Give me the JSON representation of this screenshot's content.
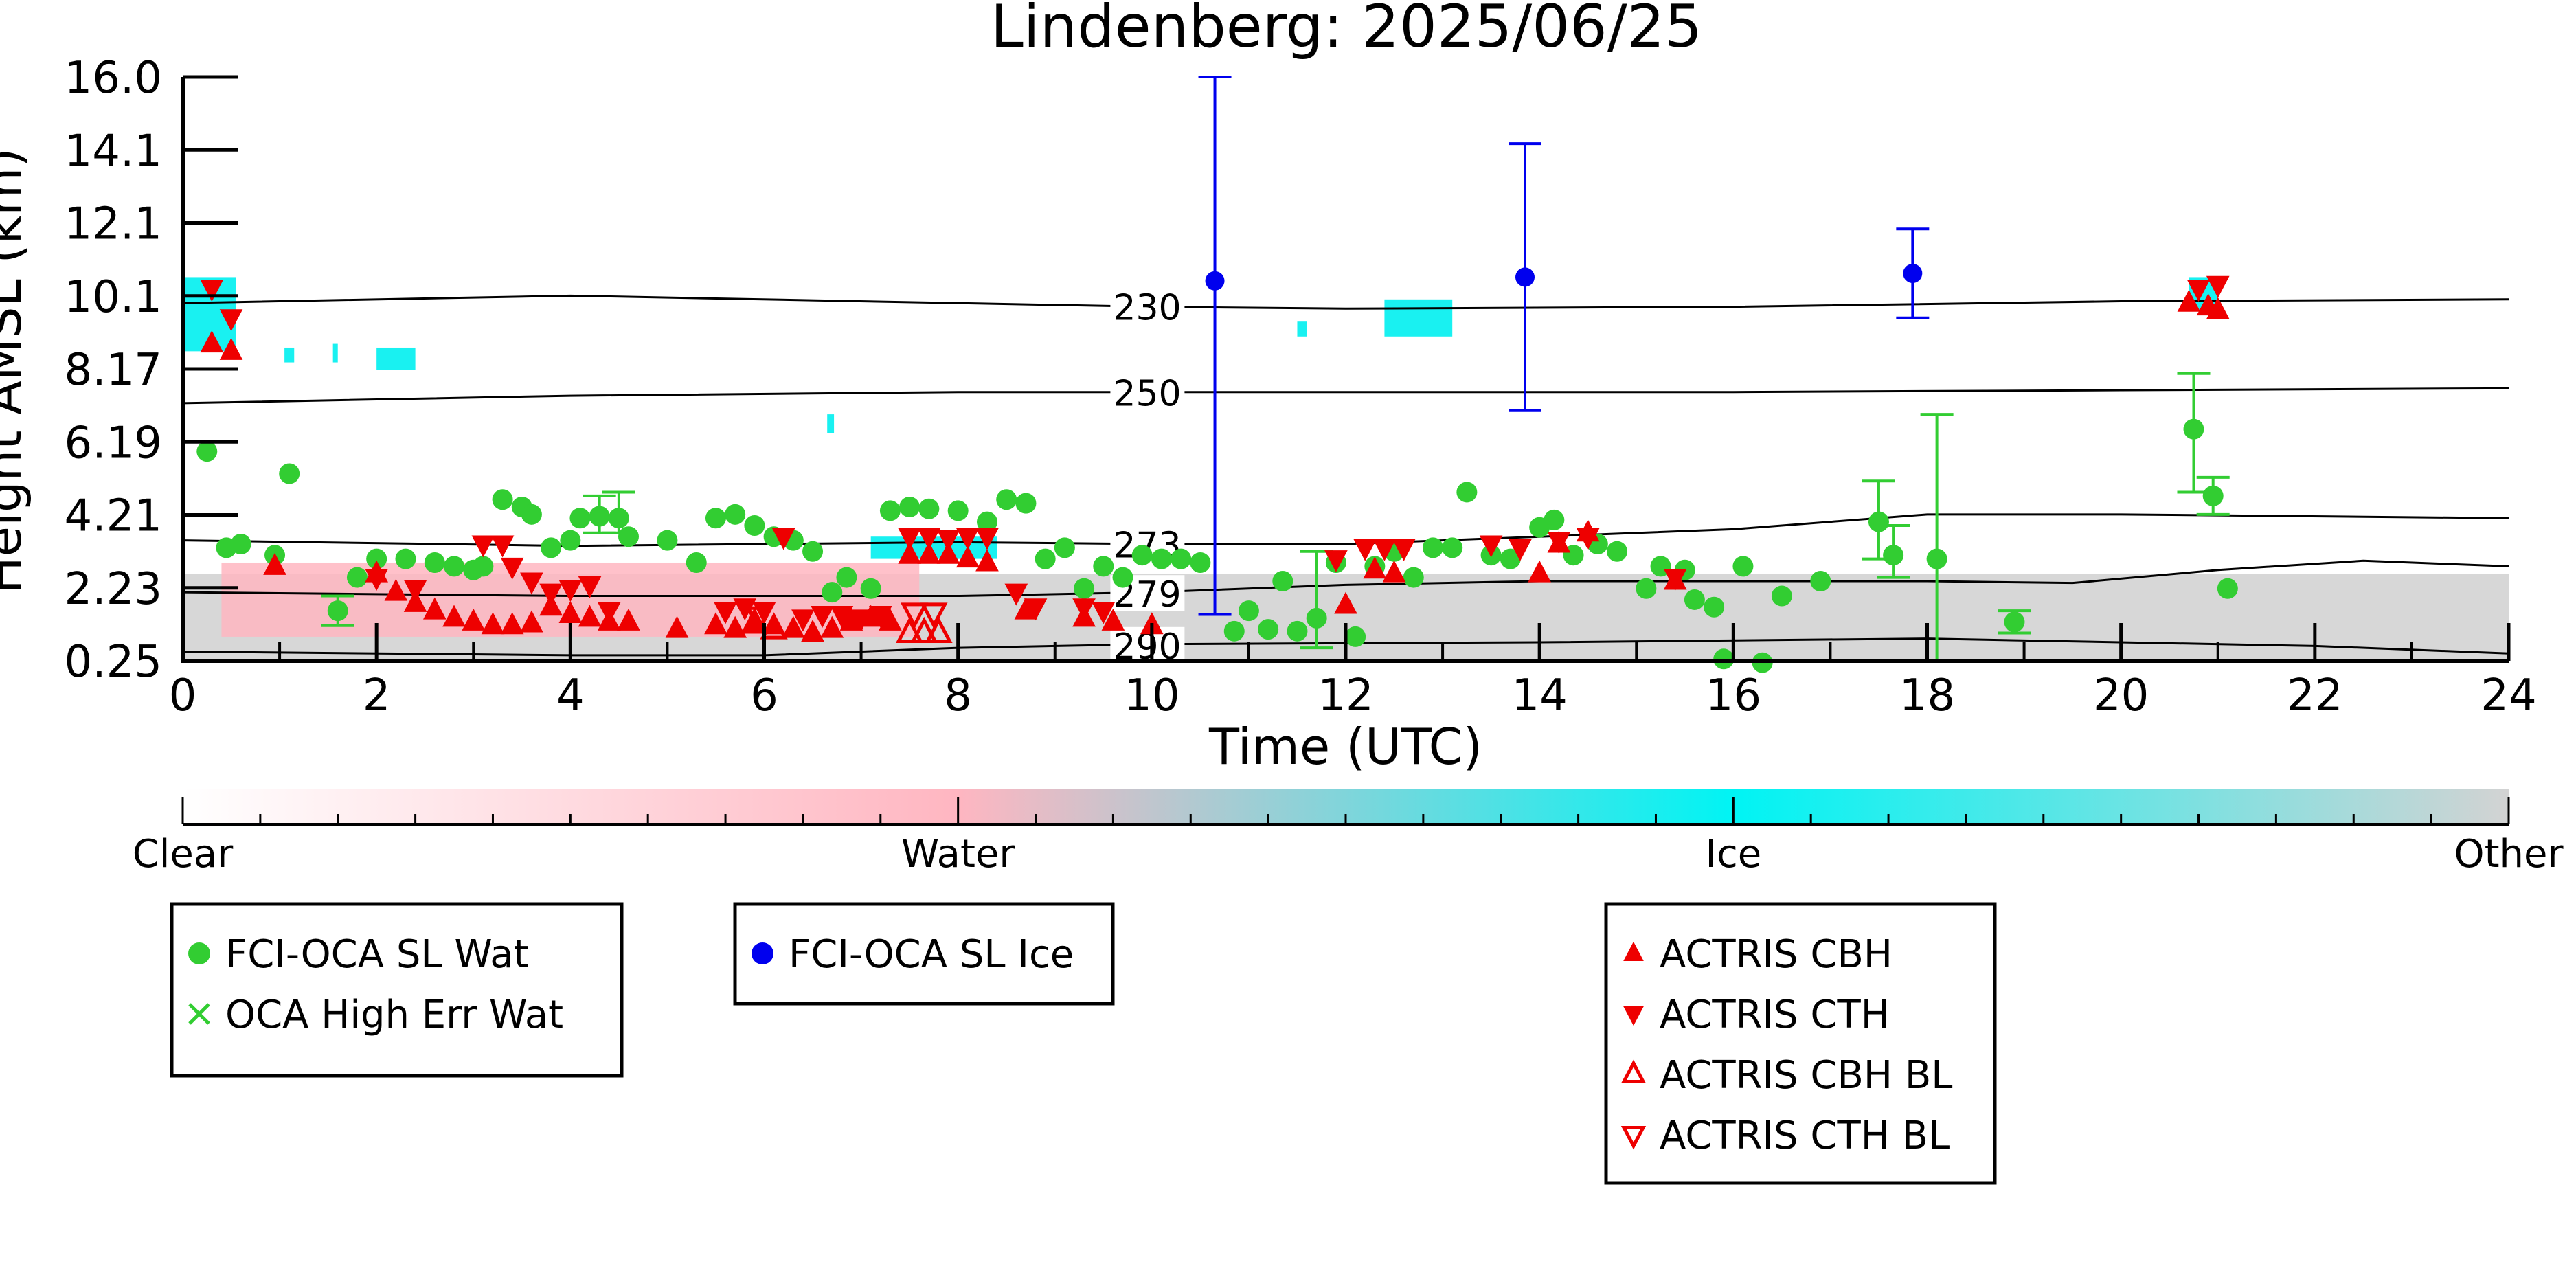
{
  "chart_data": {
    "type": "scatter",
    "title": "Lindenberg: 2025/06/25",
    "xlabel": "Time (UTC)",
    "ylabel": "Height AMSL (km)",
    "xlim": [
      0,
      24
    ],
    "x_ticks": [
      "0",
      "2",
      "4",
      "6",
      "8",
      "10",
      "12",
      "14",
      "16",
      "18",
      "20",
      "22",
      "24"
    ],
    "y_ticks": [
      "0.25",
      "2.23",
      "4.21",
      "6.19",
      "8.17",
      "10.1",
      "12.1",
      "14.1",
      "16.0"
    ],
    "ylim": [
      0.25,
      16.0
    ],
    "grid": false,
    "colors": {
      "water_pts": "#32cd32",
      "ice_pts": "#0000ee",
      "actris": "#ee0000",
      "ice_mask": "#00f0f0",
      "water_mask": "#ffb6c1",
      "other_mask": "#d3d3d3"
    },
    "isotherms": [
      {
        "label": "230",
        "x": [
          0,
          4,
          8,
          10,
          12,
          16,
          20,
          24
        ],
        "y": [
          9.9,
          10.1,
          9.9,
          9.8,
          9.75,
          9.8,
          9.95,
          10.0
        ]
      },
      {
        "label": "250",
        "x": [
          0,
          4,
          8,
          10,
          12,
          16,
          20,
          24
        ],
        "y": [
          7.2,
          7.4,
          7.5,
          7.5,
          7.5,
          7.5,
          7.55,
          7.6
        ]
      },
      {
        "label": "273",
        "x": [
          0,
          4,
          8,
          10,
          12,
          14,
          16,
          18,
          20,
          24
        ],
        "y": [
          3.5,
          3.35,
          3.45,
          3.4,
          3.4,
          3.6,
          3.8,
          4.2,
          4.2,
          4.1
        ]
      },
      {
        "label": "279",
        "x": [
          0,
          4,
          8,
          10,
          12,
          14,
          16,
          18,
          19.5,
          21,
          22.5,
          24
        ],
        "y": [
          2.1,
          2.0,
          2.0,
          2.1,
          2.3,
          2.4,
          2.4,
          2.4,
          2.35,
          2.7,
          2.95,
          2.8
        ]
      },
      {
        "label": "290",
        "x": [
          0,
          4,
          6,
          8,
          10,
          14,
          18,
          22,
          24
        ],
        "y": [
          0.5,
          0.4,
          0.4,
          0.6,
          0.7,
          0.75,
          0.85,
          0.65,
          0.45
        ]
      }
    ],
    "isotherm_label_x": 9.6,
    "masks": [
      {
        "x0": 0,
        "x1": 24,
        "y0": 0.25,
        "y1": 2.6,
        "cls": "other"
      },
      {
        "x0": 0.4,
        "x1": 7.6,
        "y0": 0.9,
        "y1": 2.9,
        "cls": "water"
      },
      {
        "x0": 0,
        "x1": 0.55,
        "y0": 8.6,
        "y1": 10.6,
        "cls": "ice"
      },
      {
        "x0": 7.1,
        "x1": 8.4,
        "y0": 3.0,
        "y1": 3.6,
        "cls": "ice"
      },
      {
        "x0": 20.7,
        "x1": 21.0,
        "y0": 9.7,
        "y1": 10.6,
        "cls": "ice"
      },
      {
        "x0": 1.05,
        "x1": 1.15,
        "y0": 8.3,
        "y1": 8.7,
        "cls": "ice"
      },
      {
        "x0": 1.55,
        "x1": 1.6,
        "y0": 8.3,
        "y1": 8.8,
        "cls": "ice"
      },
      {
        "x0": 2.0,
        "x1": 2.4,
        "y0": 8.1,
        "y1": 8.7,
        "cls": "ice"
      },
      {
        "x0": 6.65,
        "x1": 6.72,
        "y0": 6.4,
        "y1": 6.9,
        "cls": "ice"
      },
      {
        "x0": 11.5,
        "x1": 11.6,
        "y0": 9.0,
        "y1": 9.4,
        "cls": "ice"
      },
      {
        "x0": 12.4,
        "x1": 13.1,
        "y0": 9.0,
        "y1": 10.0,
        "cls": "ice"
      }
    ],
    "legend_colorbar": {
      "labels": [
        "Clear",
        "Water",
        "Ice",
        "Other"
      ]
    },
    "series": [
      {
        "name": "FCI-OCA SL Wat",
        "marker": "circle",
        "color": "#32cd32",
        "points": [
          {
            "x": 0.25,
            "y": 5.9
          },
          {
            "x": 0.45,
            "y": 3.3
          },
          {
            "x": 0.6,
            "y": 3.4
          },
          {
            "x": 0.95,
            "y": 3.1
          },
          {
            "x": 1.1,
            "y": 5.3
          },
          {
            "x": 1.6,
            "y": 1.6
          },
          {
            "x": 1.8,
            "y": 2.5
          },
          {
            "x": 2.0,
            "y": 3.0
          },
          {
            "x": 2.3,
            "y": 3.0
          },
          {
            "x": 2.6,
            "y": 2.9
          },
          {
            "x": 2.8,
            "y": 2.8
          },
          {
            "x": 3.0,
            "y": 2.7
          },
          {
            "x": 3.1,
            "y": 2.8
          },
          {
            "x": 3.3,
            "y": 4.6
          },
          {
            "x": 3.5,
            "y": 4.4
          },
          {
            "x": 3.6,
            "y": 4.2
          },
          {
            "x": 3.8,
            "y": 3.3
          },
          {
            "x": 4.0,
            "y": 3.5
          },
          {
            "x": 4.1,
            "y": 4.1
          },
          {
            "x": 4.3,
            "y": 4.15
          },
          {
            "x": 4.5,
            "y": 4.1
          },
          {
            "x": 4.6,
            "y": 3.6
          },
          {
            "x": 5.0,
            "y": 3.5
          },
          {
            "x": 5.3,
            "y": 2.9
          },
          {
            "x": 5.5,
            "y": 4.1
          },
          {
            "x": 5.7,
            "y": 4.2
          },
          {
            "x": 5.9,
            "y": 3.9
          },
          {
            "x": 6.1,
            "y": 3.6
          },
          {
            "x": 6.3,
            "y": 3.5
          },
          {
            "x": 6.5,
            "y": 3.2
          },
          {
            "x": 6.7,
            "y": 2.1
          },
          {
            "x": 6.85,
            "y": 2.5
          },
          {
            "x": 7.1,
            "y": 2.2
          },
          {
            "x": 7.3,
            "y": 4.3
          },
          {
            "x": 7.5,
            "y": 4.4
          },
          {
            "x": 7.7,
            "y": 4.35
          },
          {
            "x": 8.0,
            "y": 4.3
          },
          {
            "x": 8.3,
            "y": 4.0
          },
          {
            "x": 8.5,
            "y": 4.6
          },
          {
            "x": 8.7,
            "y": 4.5
          },
          {
            "x": 8.9,
            "y": 3.0
          },
          {
            "x": 9.1,
            "y": 3.3
          },
          {
            "x": 9.3,
            "y": 2.2
          },
          {
            "x": 9.5,
            "y": 2.8
          },
          {
            "x": 9.7,
            "y": 2.5
          },
          {
            "x": 9.9,
            "y": 3.1
          },
          {
            "x": 10.1,
            "y": 3.0
          },
          {
            "x": 10.3,
            "y": 3.0
          },
          {
            "x": 10.5,
            "y": 2.9
          },
          {
            "x": 10.85,
            "y": 1.05
          },
          {
            "x": 11.0,
            "y": 1.6
          },
          {
            "x": 11.2,
            "y": 1.1
          },
          {
            "x": 11.35,
            "y": 2.4
          },
          {
            "x": 11.5,
            "y": 1.05
          },
          {
            "x": 11.7,
            "y": 1.4
          },
          {
            "x": 11.9,
            "y": 2.9
          },
          {
            "x": 12.1,
            "y": 0.9
          },
          {
            "x": 12.3,
            "y": 2.8
          },
          {
            "x": 12.5,
            "y": 3.2
          },
          {
            "x": 12.7,
            "y": 2.5
          },
          {
            "x": 12.9,
            "y": 3.3
          },
          {
            "x": 13.1,
            "y": 3.3
          },
          {
            "x": 13.25,
            "y": 4.8
          },
          {
            "x": 13.5,
            "y": 3.1
          },
          {
            "x": 13.7,
            "y": 3.0
          },
          {
            "x": 14.0,
            "y": 3.85
          },
          {
            "x": 14.15,
            "y": 4.05
          },
          {
            "x": 14.35,
            "y": 3.1
          },
          {
            "x": 14.6,
            "y": 3.4
          },
          {
            "x": 14.8,
            "y": 3.2
          },
          {
            "x": 15.1,
            "y": 2.2
          },
          {
            "x": 15.25,
            "y": 2.8
          },
          {
            "x": 15.5,
            "y": 2.7
          },
          {
            "x": 15.6,
            "y": 1.9
          },
          {
            "x": 15.8,
            "y": 1.7
          },
          {
            "x": 15.9,
            "y": 0.3
          },
          {
            "x": 16.1,
            "y": 2.8
          },
          {
            "x": 16.3,
            "y": 0.2
          },
          {
            "x": 16.5,
            "y": 2.0
          },
          {
            "x": 16.9,
            "y": 2.4
          },
          {
            "x": 17.5,
            "y": 4.0
          },
          {
            "x": 17.65,
            "y": 3.1
          },
          {
            "x": 18.1,
            "y": 3.0
          },
          {
            "x": 18.9,
            "y": 1.3
          },
          {
            "x": 20.75,
            "y": 6.5
          },
          {
            "x": 20.95,
            "y": 4.7
          },
          {
            "x": 21.1,
            "y": 2.2
          }
        ]
      },
      {
        "name": "OCA High Err Wat",
        "marker": "x",
        "color": "#32cd32",
        "points": []
      },
      {
        "name": "FCI-OCA SL Ice",
        "marker": "circle",
        "color": "#0000ee",
        "points": [
          {
            "x": 10.65,
            "y": 10.5
          },
          {
            "x": 13.85,
            "y": 10.6
          },
          {
            "x": 17.85,
            "y": 10.7
          }
        ]
      },
      {
        "name": "ACTRIS CBH",
        "marker": "triangle-up",
        "color": "#ee0000",
        "filled": true,
        "points": [
          {
            "x": 0.3,
            "y": 8.8
          },
          {
            "x": 0.5,
            "y": 8.6
          },
          {
            "x": 0.95,
            "y": 2.8
          },
          {
            "x": 2.0,
            "y": 2.6
          },
          {
            "x": 2.2,
            "y": 2.1
          },
          {
            "x": 2.4,
            "y": 1.8
          },
          {
            "x": 2.6,
            "y": 1.6
          },
          {
            "x": 2.8,
            "y": 1.4
          },
          {
            "x": 3.0,
            "y": 1.3
          },
          {
            "x": 3.2,
            "y": 1.2
          },
          {
            "x": 3.4,
            "y": 1.2
          },
          {
            "x": 3.6,
            "y": 1.25
          },
          {
            "x": 3.8,
            "y": 1.7
          },
          {
            "x": 4.0,
            "y": 1.5
          },
          {
            "x": 4.2,
            "y": 1.4
          },
          {
            "x": 4.4,
            "y": 1.3
          },
          {
            "x": 4.6,
            "y": 1.3
          },
          {
            "x": 5.1,
            "y": 1.1
          },
          {
            "x": 5.5,
            "y": 1.2
          },
          {
            "x": 5.7,
            "y": 1.1
          },
          {
            "x": 5.9,
            "y": 1.3
          },
          {
            "x": 6.1,
            "y": 1.2
          },
          {
            "x": 6.3,
            "y": 1.1
          },
          {
            "x": 6.5,
            "y": 1.0
          },
          {
            "x": 6.7,
            "y": 1.1
          },
          {
            "x": 6.9,
            "y": 1.3
          },
          {
            "x": 7.1,
            "y": 1.4
          },
          {
            "x": 7.3,
            "y": 1.3
          },
          {
            "x": 7.5,
            "y": 3.1
          },
          {
            "x": 7.7,
            "y": 3.1
          },
          {
            "x": 7.9,
            "y": 3.1
          },
          {
            "x": 8.1,
            "y": 3.0
          },
          {
            "x": 8.3,
            "y": 2.9
          },
          {
            "x": 8.7,
            "y": 1.6
          },
          {
            "x": 9.3,
            "y": 1.4
          },
          {
            "x": 9.6,
            "y": 1.3
          },
          {
            "x": 10.0,
            "y": 1.2
          },
          {
            "x": 12.0,
            "y": 1.75
          },
          {
            "x": 12.3,
            "y": 2.7
          },
          {
            "x": 12.5,
            "y": 2.6
          },
          {
            "x": 14.0,
            "y": 2.6
          },
          {
            "x": 14.2,
            "y": 3.4
          },
          {
            "x": 14.5,
            "y": 3.7
          },
          {
            "x": 15.4,
            "y": 2.4
          },
          {
            "x": 20.7,
            "y": 9.9
          },
          {
            "x": 20.9,
            "y": 9.8
          },
          {
            "x": 21.0,
            "y": 9.7
          }
        ]
      },
      {
        "name": "ACTRIS CTH",
        "marker": "triangle-down",
        "color": "#ee0000",
        "filled": true,
        "points": [
          {
            "x": 0.3,
            "y": 10.3
          },
          {
            "x": 0.5,
            "y": 9.5
          },
          {
            "x": 2.0,
            "y": 2.5
          },
          {
            "x": 2.4,
            "y": 2.2
          },
          {
            "x": 3.1,
            "y": 3.4
          },
          {
            "x": 3.3,
            "y": 3.4
          },
          {
            "x": 3.4,
            "y": 2.8
          },
          {
            "x": 3.6,
            "y": 2.4
          },
          {
            "x": 3.8,
            "y": 2.1
          },
          {
            "x": 4.0,
            "y": 2.2
          },
          {
            "x": 4.2,
            "y": 2.3
          },
          {
            "x": 4.4,
            "y": 1.6
          },
          {
            "x": 5.6,
            "y": 1.6
          },
          {
            "x": 5.8,
            "y": 1.7
          },
          {
            "x": 6.0,
            "y": 1.6
          },
          {
            "x": 6.2,
            "y": 3.6
          },
          {
            "x": 6.4,
            "y": 1.4
          },
          {
            "x": 6.6,
            "y": 1.5
          },
          {
            "x": 6.8,
            "y": 1.5
          },
          {
            "x": 7.0,
            "y": 1.4
          },
          {
            "x": 7.2,
            "y": 1.5
          },
          {
            "x": 7.5,
            "y": 3.6
          },
          {
            "x": 7.7,
            "y": 3.6
          },
          {
            "x": 7.9,
            "y": 3.55
          },
          {
            "x": 8.1,
            "y": 3.6
          },
          {
            "x": 8.3,
            "y": 3.6
          },
          {
            "x": 8.6,
            "y": 2.1
          },
          {
            "x": 8.8,
            "y": 1.7
          },
          {
            "x": 9.3,
            "y": 1.7
          },
          {
            "x": 9.5,
            "y": 1.6
          },
          {
            "x": 11.9,
            "y": 3.0
          },
          {
            "x": 12.2,
            "y": 3.3
          },
          {
            "x": 12.4,
            "y": 3.3
          },
          {
            "x": 12.6,
            "y": 3.3
          },
          {
            "x": 13.5,
            "y": 3.4
          },
          {
            "x": 13.8,
            "y": 3.3
          },
          {
            "x": 14.2,
            "y": 3.5
          },
          {
            "x": 14.5,
            "y": 3.6
          },
          {
            "x": 15.4,
            "y": 2.5
          },
          {
            "x": 20.8,
            "y": 10.3
          },
          {
            "x": 21.0,
            "y": 10.4
          }
        ]
      },
      {
        "name": "ACTRIS CBH BL",
        "marker": "triangle-up",
        "color": "#ee0000",
        "filled": false,
        "points": [
          {
            "x": 5.9,
            "y": 1.25
          },
          {
            "x": 6.1,
            "y": 1.1
          },
          {
            "x": 7.5,
            "y": 1.0
          },
          {
            "x": 7.65,
            "y": 1.0
          },
          {
            "x": 7.8,
            "y": 1.0
          }
        ]
      },
      {
        "name": "ACTRIS CTH BL",
        "marker": "triangle-down",
        "color": "#ee0000",
        "filled": false,
        "points": [
          {
            "x": 5.95,
            "y": 1.45
          },
          {
            "x": 7.55,
            "y": 1.55
          },
          {
            "x": 7.75,
            "y": 1.55
          }
        ]
      }
    ],
    "error_bars": [
      {
        "series": "FCI-OCA SL Ice",
        "x": 10.65,
        "lo": 1.5,
        "hi": 16.0
      },
      {
        "series": "FCI-OCA SL Ice",
        "x": 13.85,
        "lo": 7.0,
        "hi": 14.2
      },
      {
        "series": "FCI-OCA SL Ice",
        "x": 17.85,
        "lo": 9.5,
        "hi": 11.9
      },
      {
        "series": "FCI-OCA SL Wat",
        "x": 4.3,
        "lo": 3.7,
        "hi": 4.7
      },
      {
        "series": "FCI-OCA SL Wat",
        "x": 4.5,
        "lo": 3.7,
        "hi": 4.8
      },
      {
        "series": "FCI-OCA SL Wat",
        "x": 11.7,
        "lo": 0.6,
        "hi": 3.2
      },
      {
        "series": "FCI-OCA SL Wat",
        "x": 17.5,
        "lo": 3.0,
        "hi": 5.1
      },
      {
        "series": "FCI-OCA SL Wat",
        "x": 17.65,
        "lo": 2.5,
        "hi": 3.9
      },
      {
        "series": "FCI-OCA SL Wat",
        "x": 18.1,
        "lo": 0.25,
        "hi": 6.9
      },
      {
        "series": "FCI-OCA SL Wat",
        "x": 20.75,
        "lo": 4.8,
        "hi": 8.0
      },
      {
        "series": "FCI-OCA SL Wat",
        "x": 20.95,
        "lo": 4.2,
        "hi": 5.2
      },
      {
        "series": "FCI-OCA SL Wat",
        "x": 1.6,
        "lo": 1.2,
        "hi": 2.0
      },
      {
        "series": "FCI-OCA SL Wat",
        "x": 18.9,
        "lo": 1.0,
        "hi": 1.6
      }
    ],
    "legend_boxes": [
      {
        "entries": [
          "FCI-OCA SL Wat",
          "OCA High Err Wat"
        ]
      },
      {
        "entries": [
          "FCI-OCA SL Ice"
        ]
      },
      {
        "entries": [
          "ACTRIS CBH",
          "ACTRIS CTH",
          "ACTRIS CBH BL",
          "ACTRIS CTH BL"
        ]
      }
    ]
  }
}
